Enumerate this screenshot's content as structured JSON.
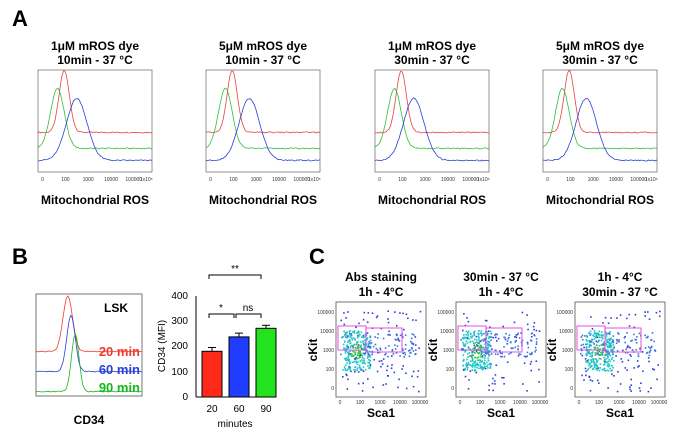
{
  "figure": {
    "panel_a": "A",
    "panel_b": "B",
    "panel_c": "C"
  },
  "panel_a": {
    "histograms": [
      {
        "line1": "1μM mROS dye",
        "line2": "10min - 37 °C"
      },
      {
        "line1": "5μM mROS dye",
        "line2": "10min - 37 °C"
      },
      {
        "line1": "1μM mROS dye",
        "line2": "30min - 37 °C"
      },
      {
        "line1": "5μM mROS dye",
        "line2": "30min - 37 °C"
      }
    ],
    "xlabel": "Mitochondrial ROS",
    "tick_labels": [
      "0",
      "100",
      "1000",
      "10000",
      "100000",
      "1x10⁵"
    ],
    "colors": {
      "red": "#e8413c",
      "green": "#2fbf3a",
      "blue": "#2b3fd6"
    }
  },
  "panel_b": {
    "histogram": {
      "label": "LSK",
      "xlabel": "CD34",
      "legend": [
        {
          "text": "20 min",
          "color": "#f03a2e"
        },
        {
          "text": "60 min",
          "color": "#2b3fd6"
        },
        {
          "text": "90 min",
          "color": "#18b61e"
        }
      ]
    },
    "bar_ticks": [
      "100",
      "200",
      "300",
      "400"
    ],
    "bar_zero": "0",
    "significance": [
      "**",
      "*",
      "ns"
    ]
  },
  "chart_data": {
    "type": "bar",
    "categories": [
      "20",
      "60",
      "90"
    ],
    "values": [
      181,
      238,
      272
    ],
    "errors": [
      15,
      15,
      12
    ],
    "colors": [
      "#ff2a1a",
      "#1f3cff",
      "#22e31e"
    ],
    "xlabel": "minutes",
    "ylabel": "CD34 (MFI)",
    "ylim": [
      0,
      400
    ]
  },
  "panel_c": {
    "plots": [
      {
        "line1": "Abs staining",
        "line2": "1h - 4°C"
      },
      {
        "line1": "30min - 37 °C",
        "line2": "1h - 4°C"
      },
      {
        "line1": "1h - 4°C",
        "line2": "30min - 37 °C"
      }
    ],
    "xlabel": "Sca1",
    "ylabel": "cKit",
    "y_ticks": [
      "100000",
      "10000",
      "1000",
      "100",
      "0"
    ],
    "x_ticks": [
      "0",
      "100",
      "1000",
      "10000",
      "100000"
    ],
    "gate_color": "#e040e0"
  }
}
